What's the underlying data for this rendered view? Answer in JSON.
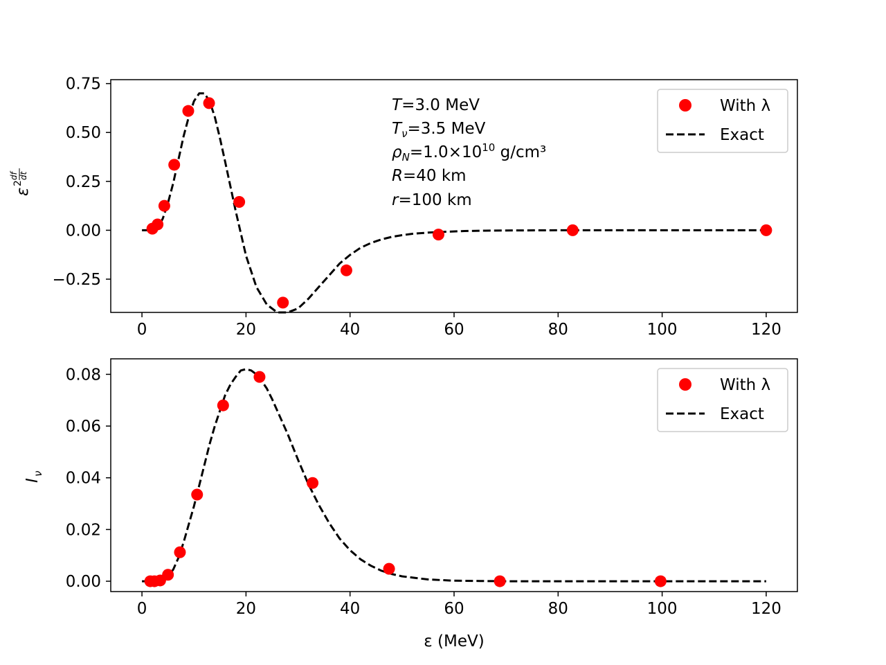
{
  "colors": {
    "points": "#ff0000",
    "curve": "#000000",
    "axes": "#000000",
    "legend_border": "#cccccc"
  },
  "chart_data": [
    {
      "type": "line",
      "panel": "top",
      "title": "",
      "xlabel": "",
      "ylabel": "ε²df/dt",
      "ylabel_parts": {
        "base": "ε",
        "sup_num": "df",
        "sup_den": "dt",
        "sup_prefix": "2"
      },
      "xlim": [
        -6,
        126
      ],
      "ylim": [
        -0.42,
        0.77
      ],
      "xticks": [
        0,
        20,
        40,
        60,
        80,
        100,
        120
      ],
      "xtick_labels": [
        "0",
        "20",
        "40",
        "60",
        "80",
        "100",
        "120"
      ],
      "yticks": [
        -0.25,
        0.0,
        0.25,
        0.5,
        0.75
      ],
      "ytick_labels": [
        "−0.25",
        "0.00",
        "0.25",
        "0.50",
        "0.75"
      ],
      "legend": {
        "placement": "top-right",
        "entries": [
          "With λ",
          "Exact"
        ]
      },
      "annotations": [
        {
          "var": "T",
          "sub": "",
          "rest": "=3.0 MeV",
          "sup": "",
          "after": ""
        },
        {
          "var": "T",
          "sub": "ν",
          "rest": "=3.5 MeV",
          "sup": "",
          "after": ""
        },
        {
          "var": "ρ",
          "sub": "N",
          "rest": "=1.0×10",
          "sup": "10",
          "after": " g/cm³"
        },
        {
          "var": "R",
          "sub": "",
          "rest": "=40 km",
          "sup": "",
          "after": ""
        },
        {
          "var": "r",
          "sub": "",
          "rest": "=100 km",
          "sup": "",
          "after": ""
        }
      ],
      "series": [
        {
          "name": "With λ",
          "style": "points",
          "x": [
            2.0,
            3.0,
            4.3,
            6.2,
            8.9,
            12.9,
            18.7,
            27.1,
            39.3,
            57.0,
            82.8,
            120.0
          ],
          "y": [
            0.008,
            0.03,
            0.125,
            0.335,
            0.61,
            0.65,
            0.145,
            -0.37,
            -0.205,
            -0.022,
            0.0,
            0.0
          ]
        },
        {
          "name": "Exact",
          "style": "dashed",
          "x": [
            0,
            1,
            2,
            3,
            4,
            5,
            6,
            7,
            8,
            9,
            10,
            11,
            12,
            13,
            14,
            15,
            16,
            18,
            20,
            22,
            24,
            26,
            28,
            29,
            30,
            32,
            34,
            36,
            38,
            40,
            42,
            44,
            46,
            48,
            50,
            52,
            55,
            58,
            62,
            66,
            70,
            80,
            90,
            100,
            110,
            120
          ],
          "y": [
            0.0,
            0.0,
            0.0,
            0.01,
            0.06,
            0.14,
            0.24,
            0.36,
            0.48,
            0.58,
            0.66,
            0.7,
            0.7,
            0.66,
            0.58,
            0.47,
            0.35,
            0.1,
            -0.13,
            -0.29,
            -0.38,
            -0.42,
            -0.42,
            -0.41,
            -0.4,
            -0.35,
            -0.29,
            -0.23,
            -0.17,
            -0.126,
            -0.09,
            -0.065,
            -0.047,
            -0.034,
            -0.025,
            -0.018,
            -0.012,
            -0.008,
            -0.004,
            -0.002,
            -0.001,
            0.0,
            0.0,
            0.0,
            0.0,
            0.0
          ]
        }
      ]
    },
    {
      "type": "line",
      "panel": "bottom",
      "title": "",
      "xlabel": "ε (MeV)",
      "ylabel": "Iν",
      "ylabel_parts": {
        "base": "I",
        "sub": "ν"
      },
      "xlim": [
        -6,
        126
      ],
      "ylim": [
        -0.004,
        0.086
      ],
      "xticks": [
        0,
        20,
        40,
        60,
        80,
        100,
        120
      ],
      "xtick_labels": [
        "0",
        "20",
        "40",
        "60",
        "80",
        "100",
        "120"
      ],
      "yticks": [
        0.0,
        0.02,
        0.04,
        0.06,
        0.08
      ],
      "ytick_labels": [
        "0.00",
        "0.02",
        "0.04",
        "0.06",
        "0.08"
      ],
      "legend": {
        "placement": "top-right",
        "entries": [
          "With λ",
          "Exact"
        ]
      },
      "series": [
        {
          "name": "With λ",
          "style": "points",
          "x": [
            1.6,
            2.4,
            3.5,
            5.0,
            7.3,
            10.6,
            15.6,
            22.6,
            32.8,
            47.5,
            68.8,
            99.7
          ],
          "y": [
            0.0,
            0.0,
            0.0003,
            0.0025,
            0.0112,
            0.0335,
            0.068,
            0.079,
            0.038,
            0.0048,
            0.0,
            0.0
          ]
        },
        {
          "name": "Exact",
          "style": "dashed",
          "x": [
            0,
            1,
            2,
            3,
            4,
            5,
            6,
            7,
            8,
            9,
            10,
            11,
            12,
            13,
            14,
            15,
            16,
            17,
            18,
            19,
            20,
            21,
            22,
            23,
            24,
            25,
            26,
            28,
            30,
            32,
            34,
            36,
            38,
            40,
            42,
            44,
            46,
            48,
            50,
            55,
            60,
            65,
            70,
            80,
            90,
            100,
            110,
            120
          ],
          "y": [
            0.0,
            0.0,
            0.0,
            0.0002,
            0.0008,
            0.002,
            0.0045,
            0.009,
            0.015,
            0.022,
            0.029,
            0.037,
            0.045,
            0.053,
            0.06,
            0.066,
            0.072,
            0.076,
            0.079,
            0.0815,
            0.082,
            0.0815,
            0.08,
            0.0775,
            0.0745,
            0.0705,
            0.066,
            0.057,
            0.047,
            0.0375,
            0.0295,
            0.0225,
            0.0165,
            0.012,
            0.0085,
            0.006,
            0.0041,
            0.0028,
            0.0019,
            0.0007,
            0.0002,
            0.0001,
            0.0,
            0.0,
            0.0,
            0.0,
            0.0,
            0.0
          ]
        }
      ]
    }
  ]
}
